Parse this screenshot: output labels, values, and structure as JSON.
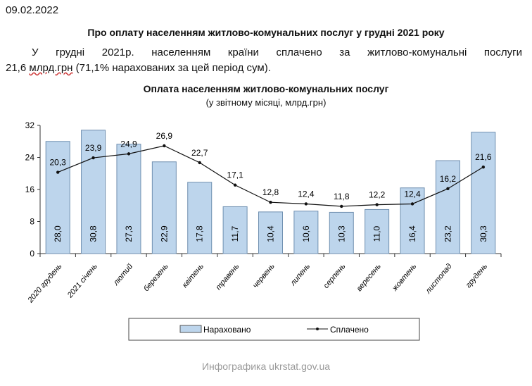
{
  "date": "09.02.2022",
  "heading": "Про оплату населенням житлово-комунальних послуг у грудні 2021 року",
  "paragraph_line1": "У грудні 2021р. населенням країни сплачено за житлово-комунальні послуги",
  "paragraph_line2_a": "21,6 ",
  "paragraph_line2_b": "млрд.грн",
  "paragraph_line2_c": " (71,1%  нарахованих за цей період сум).",
  "watermark": "Инфографика ukrstat.gov.ua",
  "chart_data": {
    "type": "bar",
    "title": "Оплата населенням житлово-комунальних послуг",
    "subtitle": "(у звітному місяці, млрд.грн)",
    "categories": [
      "2020 грудень",
      "2021 січень",
      "лютий",
      "березень",
      "квітень",
      "травень",
      "червень",
      "липень",
      "серпень",
      "вересень",
      "жовтень",
      "листопад",
      "грудень"
    ],
    "series": [
      {
        "name": "Нараховано",
        "type": "bar",
        "color": "#bdd5ec",
        "values": [
          28.0,
          30.8,
          27.3,
          22.9,
          17.8,
          11.7,
          10.4,
          10.6,
          10.3,
          11.0,
          16.4,
          23.2,
          30.3
        ],
        "labels": [
          "28,0",
          "30,8",
          "27,3",
          "22,9",
          "17,8",
          "11,7",
          "10,4",
          "10,6",
          "10,3",
          "11,0",
          "16,4",
          "23,2",
          "30,3"
        ]
      },
      {
        "name": "Сплачено",
        "type": "line",
        "color": "#111111",
        "values": [
          20.3,
          23.9,
          24.9,
          26.9,
          22.7,
          17.1,
          12.8,
          12.4,
          11.8,
          12.2,
          12.4,
          16.2,
          21.6
        ],
        "labels": [
          "20,3",
          "23,9",
          "24,9",
          "26,9",
          "22,7",
          "17,1",
          "12,8",
          "12,4",
          "11,8",
          "12,2",
          "12,4",
          "16,2",
          "21,6"
        ]
      }
    ],
    "yticks": [
      0,
      8,
      16,
      24,
      32
    ],
    "ylim": [
      0,
      32
    ],
    "legend": "bottom"
  }
}
